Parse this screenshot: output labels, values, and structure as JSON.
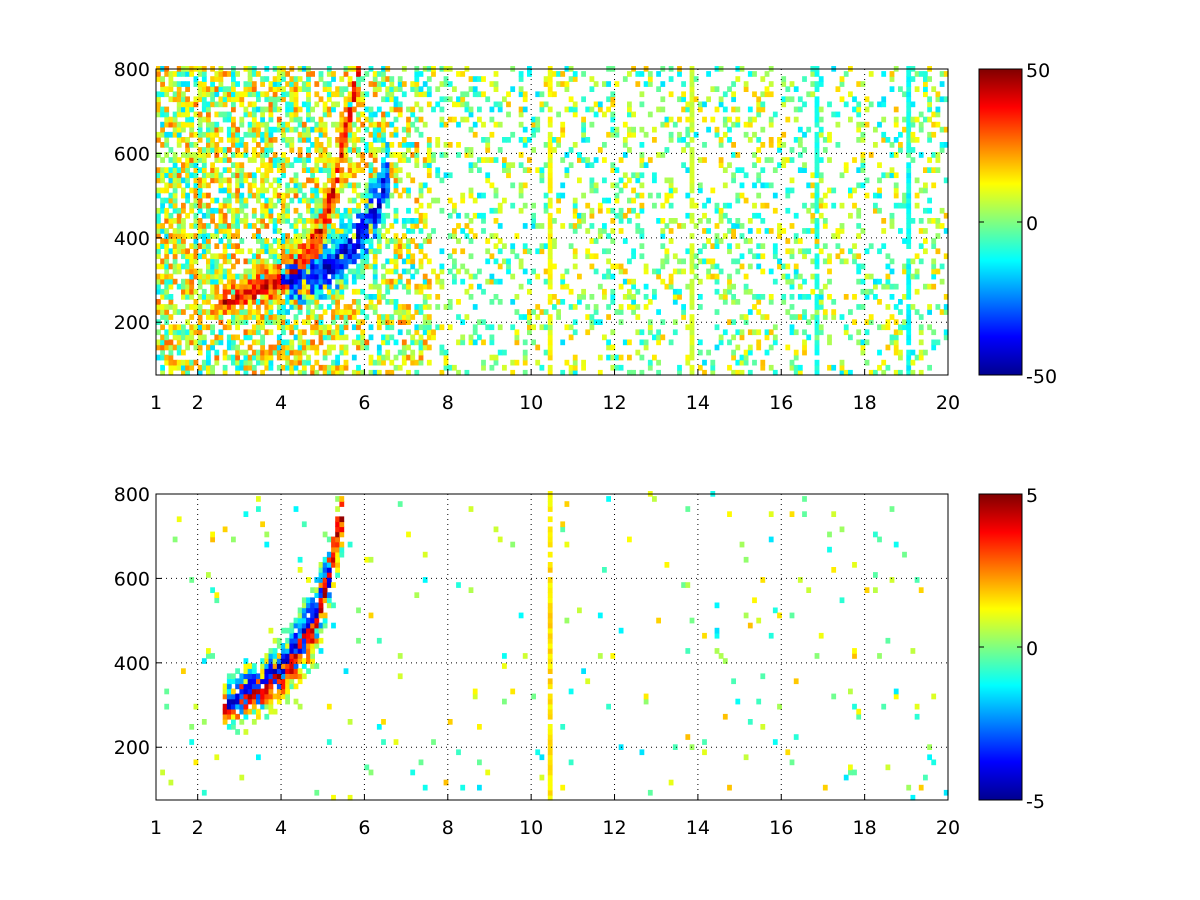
{
  "colormap": [
    "#00008f",
    "#0000ff",
    "#0080ff",
    "#00ffff",
    "#80ff80",
    "#ffff00",
    "#ff8000",
    "#ff0000",
    "#800000"
  ],
  "chart_data": [
    {
      "type": "heatmap",
      "title": "",
      "xlabel": "",
      "ylabel": "",
      "xlim": [
        1,
        20
      ],
      "ylim": [
        75,
        800
      ],
      "xticks": [
        1,
        2,
        4,
        6,
        8,
        10,
        12,
        14,
        16,
        18,
        20
      ],
      "yticks": [
        200,
        400,
        600,
        800
      ],
      "grid": true,
      "colorbar": {
        "ticks": [
          -50,
          0,
          50
        ],
        "range": [
          -50,
          50
        ],
        "placement": "right"
      },
      "ridges": [
        {
          "name": "positive",
          "points": [
            [
              2.3,
              235
            ],
            [
              2.8,
              250
            ],
            [
              3.4,
              272
            ],
            [
              4.0,
              298
            ],
            [
              4.5,
              340
            ],
            [
              4.9,
              410
            ],
            [
              5.2,
              500
            ],
            [
              5.4,
              600
            ],
            [
              5.6,
              700
            ],
            [
              5.8,
              780
            ]
          ],
          "value": 40
        },
        {
          "name": "negative",
          "points": [
            [
              4.0,
              285
            ],
            [
              4.6,
              300
            ],
            [
              5.2,
              330
            ],
            [
              5.6,
              370
            ],
            [
              6.0,
              420
            ],
            [
              6.3,
              480
            ],
            [
              6.5,
              540
            ]
          ],
          "value": -40
        }
      ],
      "vertical_stripes": [
        {
          "x": 10.4,
          "value": 12
        },
        {
          "x": 13.8,
          "value": 8
        },
        {
          "x": 16.8,
          "value": -10
        },
        {
          "x": 19.0,
          "value": -12
        }
      ],
      "noise_density": 0.22
    },
    {
      "type": "heatmap",
      "title": "",
      "xlabel": "",
      "ylabel": "",
      "xlim": [
        1,
        20
      ],
      "ylim": [
        75,
        800
      ],
      "xticks": [
        1,
        2,
        4,
        6,
        8,
        10,
        12,
        14,
        16,
        18,
        20
      ],
      "yticks": [
        200,
        400,
        600,
        800
      ],
      "grid": true,
      "colorbar": {
        "ticks": [
          -5,
          0,
          5
        ],
        "range": [
          -5,
          5
        ],
        "placement": "right"
      },
      "ridges": [
        {
          "name": "positive",
          "points": [
            [
              2.6,
              290
            ],
            [
              3.2,
              320
            ],
            [
              3.8,
              350
            ],
            [
              4.3,
              400
            ],
            [
              4.7,
              470
            ],
            [
              5.0,
              560
            ],
            [
              5.2,
              650
            ],
            [
              5.4,
              740
            ]
          ],
          "value": 4
        },
        {
          "name": "negative",
          "points": [
            [
              2.7,
              300
            ],
            [
              3.3,
              340
            ],
            [
              3.9,
              380
            ],
            [
              4.4,
              440
            ],
            [
              4.8,
              520
            ],
            [
              5.1,
              600
            ]
          ],
          "value": -4
        }
      ],
      "vertical_stripes": [
        {
          "x": 10.4,
          "value": 1.5
        }
      ],
      "noise_density": 0.02
    }
  ]
}
